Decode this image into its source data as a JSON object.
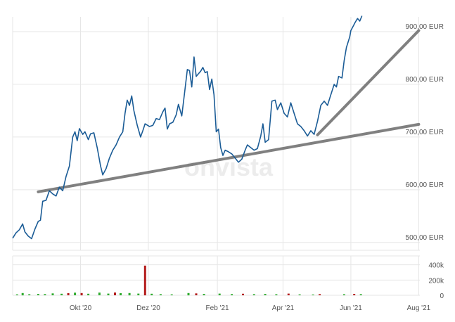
{
  "watermark": "onvista",
  "colors": {
    "price_line": "#1b5c96",
    "trend_line": "#808080",
    "grid": "#e6e6e6",
    "volume_up": "#2eab2e",
    "volume_down": "#b31b1b",
    "axis_text": "#555555",
    "watermark": "#ececec"
  },
  "chart_data": [
    {
      "type": "line",
      "title": "",
      "xlabel": "",
      "ylabel": "",
      "y_axis_position": "right",
      "grid": true,
      "legend": "none",
      "x_tick_labels": [
        "Okt '20",
        "Dez '20",
        "Feb '21",
        "Apr '21",
        "Jun '21",
        "Aug '21"
      ],
      "x_tick_dates": [
        "2020-10-01",
        "2020-12-01",
        "2021-02-01",
        "2021-04-01",
        "2021-06-01",
        "2021-08-01"
      ],
      "y_tick_values": [
        500,
        600,
        700,
        800,
        900
      ],
      "y_tick_labels": [
        "500,00 EUR",
        "600,00 EUR",
        "700,00 EUR",
        "800,00 EUR",
        "900,00 EUR"
      ],
      "xlim": [
        "2020-08-01",
        "2021-08-02"
      ],
      "ylim": [
        485,
        920
      ],
      "unit": "EUR",
      "series": [
        {
          "name": "",
          "points": [
            [
              "2020-08-01",
              508
            ],
            [
              "2020-08-04",
              518
            ],
            [
              "2020-08-07",
              524
            ],
            [
              "2020-08-10",
              535
            ],
            [
              "2020-08-12",
              520
            ],
            [
              "2020-08-15",
              512
            ],
            [
              "2020-08-18",
              507
            ],
            [
              "2020-08-21",
              525
            ],
            [
              "2020-08-24",
              540
            ],
            [
              "2020-08-26",
              542
            ],
            [
              "2020-08-28",
              578
            ],
            [
              "2020-08-31",
              580
            ],
            [
              "2020-09-03",
              598
            ],
            [
              "2020-09-06",
              592
            ],
            [
              "2020-09-09",
              588
            ],
            [
              "2020-09-12",
              605
            ],
            [
              "2020-09-15",
              598
            ],
            [
              "2020-09-18",
              625
            ],
            [
              "2020-09-21",
              645
            ],
            [
              "2020-09-24",
              700
            ],
            [
              "2020-09-26",
              710
            ],
            [
              "2020-09-28",
              693
            ],
            [
              "2020-09-30",
              716
            ],
            [
              "2020-10-03",
              705
            ],
            [
              "2020-10-05",
              710
            ],
            [
              "2020-10-08",
              695
            ],
            [
              "2020-10-10",
              706
            ],
            [
              "2020-10-13",
              708
            ],
            [
              "2020-10-16",
              680
            ],
            [
              "2020-10-19",
              645
            ],
            [
              "2020-10-21",
              628
            ],
            [
              "2020-10-24",
              640
            ],
            [
              "2020-10-27",
              660
            ],
            [
              "2020-10-30",
              675
            ],
            [
              "2020-11-02",
              685
            ],
            [
              "2020-11-05",
              700
            ],
            [
              "2020-11-08",
              710
            ],
            [
              "2020-11-10",
              745
            ],
            [
              "2020-11-12",
              770
            ],
            [
              "2020-11-14",
              760
            ],
            [
              "2020-11-16",
              778
            ],
            [
              "2020-11-18",
              750
            ],
            [
              "2020-11-21",
              722
            ],
            [
              "2020-11-24",
              700
            ],
            [
              "2020-11-26",
              712
            ],
            [
              "2020-11-28",
              725
            ],
            [
              "2020-12-02",
              720
            ],
            [
              "2020-12-05",
              722
            ],
            [
              "2020-12-08",
              735
            ],
            [
              "2020-12-11",
              733
            ],
            [
              "2020-12-14",
              748
            ],
            [
              "2020-12-16",
              755
            ],
            [
              "2020-12-18",
              715
            ],
            [
              "2020-12-20",
              725
            ],
            [
              "2020-12-23",
              728
            ],
            [
              "2020-12-26",
              742
            ],
            [
              "2020-12-28",
              762
            ],
            [
              "2020-12-31",
              740
            ],
            [
              "2021-01-03",
              792
            ],
            [
              "2021-01-05",
              828
            ],
            [
              "2021-01-07",
              826
            ],
            [
              "2021-01-09",
              795
            ],
            [
              "2021-01-11",
              852
            ],
            [
              "2021-01-13",
              815
            ],
            [
              "2021-01-15",
              820
            ],
            [
              "2021-01-17",
              825
            ],
            [
              "2021-01-19",
              832
            ],
            [
              "2021-01-21",
              822
            ],
            [
              "2021-01-23",
              824
            ],
            [
              "2021-01-25",
              790
            ],
            [
              "2021-01-27",
              810
            ],
            [
              "2021-01-29",
              780
            ],
            [
              "2021-01-31",
              710
            ],
            [
              "2021-02-02",
              715
            ],
            [
              "2021-02-04",
              680
            ],
            [
              "2021-02-06",
              665
            ],
            [
              "2021-02-08",
              675
            ],
            [
              "2021-02-11",
              672
            ],
            [
              "2021-02-14",
              668
            ],
            [
              "2021-02-17",
              660
            ],
            [
              "2021-02-20",
              652
            ],
            [
              "2021-02-23",
              658
            ],
            [
              "2021-02-26",
              675
            ],
            [
              "2021-02-28",
              685
            ],
            [
              "2021-03-03",
              680
            ],
            [
              "2021-03-06",
              675
            ],
            [
              "2021-03-09",
              678
            ],
            [
              "2021-03-12",
              702
            ],
            [
              "2021-03-14",
              725
            ],
            [
              "2021-03-16",
              690
            ],
            [
              "2021-03-19",
              695
            ],
            [
              "2021-03-22",
              768
            ],
            [
              "2021-03-25",
              770
            ],
            [
              "2021-03-27",
              752
            ],
            [
              "2021-03-30",
              765
            ],
            [
              "2021-04-02",
              745
            ],
            [
              "2021-04-05",
              738
            ],
            [
              "2021-04-08",
              765
            ],
            [
              "2021-04-11",
              745
            ],
            [
              "2021-04-14",
              725
            ],
            [
              "2021-04-17",
              720
            ],
            [
              "2021-04-20",
              712
            ],
            [
              "2021-04-23",
              702
            ],
            [
              "2021-04-26",
              712
            ],
            [
              "2021-04-29",
              705
            ],
            [
              "2021-05-02",
              730
            ],
            [
              "2021-05-05",
              760
            ],
            [
              "2021-05-08",
              768
            ],
            [
              "2021-05-11",
              760
            ],
            [
              "2021-05-14",
              780
            ],
            [
              "2021-05-17",
              800
            ],
            [
              "2021-05-19",
              795
            ],
            [
              "2021-05-21",
              815
            ],
            [
              "2021-05-24",
              812
            ],
            [
              "2021-05-26",
              845
            ],
            [
              "2021-05-28",
              870
            ],
            [
              "2021-05-31",
              890
            ],
            [
              "2021-06-01",
              902
            ],
            [
              "2021-06-03",
              910
            ],
            [
              "2021-06-05",
              918
            ],
            [
              "2021-06-07",
              925
            ],
            [
              "2021-06-09",
              920
            ],
            [
              "2021-06-11",
              930
            ]
          ]
        }
      ],
      "trend_lines": [
        {
          "from": [
            "2020-08-24",
            596
          ],
          "to": [
            "2021-08-01",
            724
          ]
        },
        {
          "from": [
            "2021-05-02",
            704
          ],
          "to": [
            "2021-08-01",
            902
          ]
        }
      ]
    },
    {
      "type": "bar",
      "title": "",
      "xlabel": "",
      "ylabel": "",
      "y_axis_position": "right",
      "grid": true,
      "y_tick_values": [
        0,
        200000,
        400000
      ],
      "y_tick_labels": [
        "0",
        "200k",
        "400k"
      ],
      "ylim": [
        0,
        480000
      ],
      "series": [
        {
          "name": "",
          "values": [
            {
              "x": "2020-08-05",
              "v": 12000,
              "dir": "up"
            },
            {
              "x": "2020-08-10",
              "v": 30000,
              "dir": "up"
            },
            {
              "x": "2020-08-16",
              "v": 14000,
              "dir": "up"
            },
            {
              "x": "2020-08-24",
              "v": 18000,
              "dir": "up"
            },
            {
              "x": "2020-08-30",
              "v": 16000,
              "dir": "up"
            },
            {
              "x": "2020-09-06",
              "v": 25000,
              "dir": "up"
            },
            {
              "x": "2020-09-14",
              "v": 20000,
              "dir": "up"
            },
            {
              "x": "2020-09-20",
              "v": 28000,
              "dir": "down"
            },
            {
              "x": "2020-09-26",
              "v": 34000,
              "dir": "up"
            },
            {
              "x": "2020-10-02",
              "v": 30000,
              "dir": "down"
            },
            {
              "x": "2020-10-08",
              "v": 20000,
              "dir": "up"
            },
            {
              "x": "2020-10-18",
              "v": 35000,
              "dir": "up"
            },
            {
              "x": "2020-10-26",
              "v": 22000,
              "dir": "up"
            },
            {
              "x": "2020-11-01",
              "v": 36000,
              "dir": "down"
            },
            {
              "x": "2020-11-06",
              "v": 28000,
              "dir": "up"
            },
            {
              "x": "2020-11-14",
              "v": 30000,
              "dir": "up"
            },
            {
              "x": "2020-11-22",
              "v": 22000,
              "dir": "up"
            },
            {
              "x": "2020-11-28",
              "v": 390000,
              "dir": "down"
            },
            {
              "x": "2020-12-04",
              "v": 20000,
              "dir": "up"
            },
            {
              "x": "2020-12-12",
              "v": 15000,
              "dir": "up"
            },
            {
              "x": "2020-12-22",
              "v": 12000,
              "dir": "up"
            },
            {
              "x": "2021-01-06",
              "v": 30000,
              "dir": "up"
            },
            {
              "x": "2021-01-13",
              "v": 25000,
              "dir": "down"
            },
            {
              "x": "2021-01-20",
              "v": 18000,
              "dir": "up"
            },
            {
              "x": "2021-02-03",
              "v": 22000,
              "dir": "up"
            },
            {
              "x": "2021-02-14",
              "v": 16000,
              "dir": "up"
            },
            {
              "x": "2021-02-24",
              "v": 20000,
              "dir": "down"
            },
            {
              "x": "2021-03-06",
              "v": 15000,
              "dir": "up"
            },
            {
              "x": "2021-03-16",
              "v": 18000,
              "dir": "up"
            },
            {
              "x": "2021-03-26",
              "v": 14000,
              "dir": "up"
            },
            {
              "x": "2021-04-06",
              "v": 22000,
              "dir": "down"
            },
            {
              "x": "2021-04-16",
              "v": 12000,
              "dir": "up"
            },
            {
              "x": "2021-04-28",
              "v": 10000,
              "dir": "up"
            },
            {
              "x": "2021-05-04",
              "v": 16000,
              "dir": "down"
            },
            {
              "x": "2021-05-26",
              "v": 14000,
              "dir": "up"
            },
            {
              "x": "2021-06-04",
              "v": 18000,
              "dir": "down"
            },
            {
              "x": "2021-06-10",
              "v": 15000,
              "dir": "up"
            }
          ]
        }
      ]
    }
  ]
}
